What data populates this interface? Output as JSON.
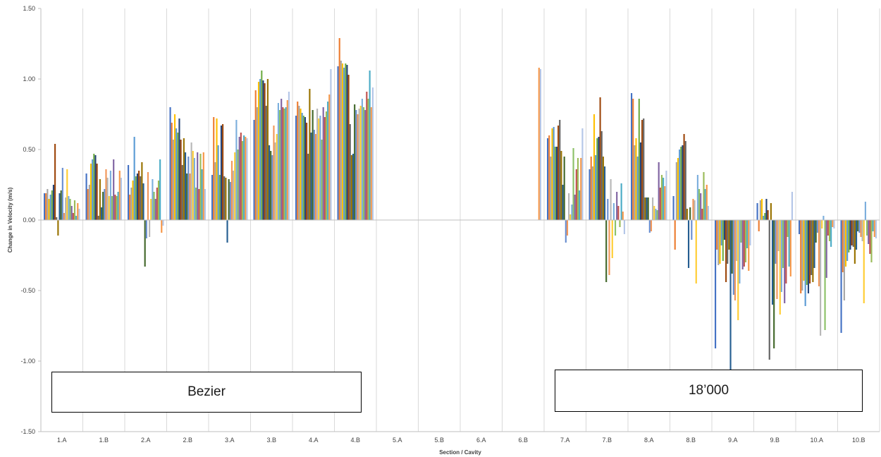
{
  "chart_data": {
    "type": "bar",
    "title": "",
    "xlabel": "Section / Cavity",
    "ylabel": "Change in Velocity (m/s)",
    "ylim": [
      -1.5,
      1.5
    ],
    "yticks": [
      "-1.50",
      "-1.00",
      "-0.50",
      "0.00",
      "0.50",
      "1.00",
      "1.50"
    ],
    "grid": "vertical gridlines between categories",
    "categories": [
      "1.A",
      "1.B",
      "2.A",
      "2.B",
      "3.A",
      "3.B",
      "4.A",
      "4.B",
      "5.A",
      "5.B",
      "6.A",
      "6.B",
      "7.A",
      "7.B",
      "8.A",
      "8.B",
      "9.A",
      "9.B",
      "10.A",
      "10.B"
    ],
    "bars_per_category": 24,
    "colors": [
      "#4472C4",
      "#ED7D31",
      "#A5A5A5",
      "#FFC000",
      "#5B9BD5",
      "#70AD47",
      "#264478",
      "#9E480E",
      "#636363",
      "#997300",
      "#255E91",
      "#43682B",
      "#698ED0",
      "#F1975A",
      "#B7B7B7",
      "#FFCD33",
      "#7CAFDD",
      "#8CC168",
      "#8064A2",
      "#C0504D",
      "#9BBB59",
      "#4BACC6",
      "#F79646",
      "#B4C6E7"
    ],
    "category_values": [
      [
        0.19,
        0.19,
        0.22,
        0.15,
        0.18,
        0.21,
        0.25,
        0.54,
        0.02,
        -0.11,
        0.19,
        0.21,
        0.37,
        0.05,
        0.16,
        0.36,
        0.17,
        0.15,
        0.1,
        0.05,
        0.14,
        0.03,
        0.12,
        0.08
      ],
      [
        0.33,
        0.22,
        0.25,
        0.4,
        0.43,
        0.47,
        0.46,
        0.4,
        0.03,
        0.29,
        0.09,
        0.2,
        0.22,
        0.36,
        0.3,
        0.17,
        0.35,
        0.17,
        0.43,
        0.18,
        0.17,
        0.2,
        0.35,
        0.3
      ],
      [
        0.39,
        0.18,
        0.23,
        0.28,
        0.59,
        0.31,
        0.33,
        0.35,
        0.31,
        0.41,
        0.26,
        -0.33,
        -0.13,
        0.34,
        -0.12,
        0.15,
        0.29,
        0.2,
        0.15,
        0.23,
        0.28,
        0.43,
        -0.09,
        -0.04
      ],
      [
        0.8,
        0.69,
        0.57,
        0.75,
        0.65,
        0.62,
        0.72,
        0.57,
        0.39,
        0.58,
        0.48,
        0.33,
        0.45,
        0.33,
        0.55,
        0.49,
        0.44,
        0.23,
        0.48,
        0.22,
        0.47,
        0.36,
        0.48,
        0.22
      ],
      [
        0.32,
        0.73,
        0.41,
        0.72,
        0.53,
        0.32,
        0.67,
        0.68,
        0.31,
        0.3,
        -0.16,
        0.29,
        0.27,
        0.42,
        0.35,
        0.48,
        0.71,
        0.5,
        0.59,
        0.62,
        0.56,
        0.6,
        0.59,
        0.58
      ],
      [
        0.71,
        0.92,
        0.8,
        0.98,
        1.0,
        1.06,
        0.99,
        0.97,
        0.81,
        1.0,
        0.53,
        0.49,
        0.46,
        0.67,
        0.55,
        0.61,
        0.83,
        0.78,
        0.86,
        0.8,
        0.79,
        0.8,
        0.85,
        0.91
      ],
      [
        0.74,
        0.84,
        0.81,
        0.79,
        0.76,
        0.74,
        0.73,
        0.69,
        0.47,
        0.93,
        0.62,
        0.78,
        0.64,
        0.61,
        0.79,
        0.72,
        0.74,
        0.57,
        0.8,
        0.73,
        0.77,
        0.84,
        0.89,
        1.07
      ],
      [
        1.09,
        1.29,
        1.13,
        1.11,
        1.08,
        1.11,
        1.1,
        1.03,
        0.68,
        0.46,
        0.47,
        0.82,
        0.78,
        0.75,
        0.79,
        0.81,
        0.86,
        0.8,
        0.78,
        0.91,
        0.86,
        1.06,
        0.8,
        0.94
      ],
      [
        0,
        0,
        0,
        0,
        0,
        0,
        0,
        0,
        0,
        0,
        0,
        0,
        0,
        0,
        0,
        0,
        0,
        0,
        0,
        0,
        0,
        0,
        0,
        0
      ],
      [
        0,
        0,
        0,
        0,
        0,
        0,
        0,
        0,
        0,
        0,
        0,
        0,
        0,
        0,
        0,
        0,
        0,
        0,
        0,
        0,
        0,
        0,
        0,
        0
      ],
      [
        0,
        0,
        0,
        0,
        0,
        0,
        0,
        0,
        0,
        0,
        0,
        0,
        0,
        0,
        0,
        0,
        0,
        0,
        0,
        0,
        0,
        0,
        0,
        0
      ],
      [
        0,
        0,
        0,
        0,
        0,
        0,
        0,
        0,
        0,
        0,
        0,
        0,
        0,
        0,
        0,
        0,
        0,
        0,
        0,
        0,
        0,
        0,
        1.08,
        1.07
      ],
      [
        0.58,
        0.6,
        0.45,
        0.65,
        0.66,
        0.52,
        0.52,
        0.67,
        0.71,
        0.49,
        0.25,
        0.45,
        -0.16,
        -0.11,
        0.19,
        0.04,
        0.11,
        0.51,
        0.18,
        0.36,
        0.44,
        0.21,
        0.44,
        0.65
      ],
      [
        0.36,
        0.45,
        0.38,
        0.75,
        0.46,
        0.58,
        0.59,
        0.87,
        0.63,
        0.45,
        0.38,
        -0.44,
        0.15,
        -0.39,
        0.29,
        -0.27,
        0.12,
        -0.11,
        0.2,
        0.1,
        -0.05,
        0.26,
        0.06,
        -0.1
      ],
      [
        0.9,
        0.86,
        0.53,
        0.58,
        0.45,
        0.86,
        0.55,
        0.71,
        0.72,
        0.16,
        0.16,
        0.16,
        -0.09,
        -0.08,
        0.16,
        0.1,
        0.08,
        0.07,
        0.41,
        0.23,
        0.32,
        0.3,
        0.24,
        0.35
      ],
      [
        0.17,
        -0.21,
        0.41,
        0.44,
        0.5,
        0.52,
        0.53,
        0.61,
        0.56,
        0.08,
        -0.34,
        0.09,
        -0.14,
        0.15,
        0.14,
        -0.45,
        0.32,
        0.22,
        0.19,
        0.08,
        0.34,
        0.22,
        0.25,
        0.1
      ],
      [
        -0.91,
        -0.21,
        -0.32,
        -0.31,
        -0.18,
        -0.29,
        -0.14,
        -0.44,
        -0.31,
        -0.21,
        -1.09,
        -0.38,
        -0.53,
        -0.57,
        -0.29,
        -0.71,
        -0.45,
        -0.16,
        -0.35,
        -0.33,
        -0.3,
        -0.2,
        -0.36,
        -0.18
      ],
      [
        0.12,
        -0.08,
        0.14,
        0.15,
        0.03,
        0.05,
        0.15,
        0.07,
        -0.99,
        0.12,
        -0.6,
        -0.91,
        -0.31,
        -0.56,
        -0.22,
        -0.67,
        -0.51,
        -0.34,
        -0.59,
        -0.45,
        -0.12,
        -0.33,
        -0.4,
        0.2
      ],
      [
        -0.1,
        -0.52,
        -0.5,
        -0.43,
        -0.61,
        -0.46,
        -0.52,
        -0.45,
        -0.39,
        -0.44,
        -0.34,
        -0.16,
        -0.09,
        -0.47,
        -0.82,
        -0.06,
        0.03,
        -0.78,
        -0.41,
        -0.11,
        -0.15,
        -0.19,
        -0.05,
        -0.06
      ],
      [
        -0.8,
        -0.37,
        -0.57,
        -0.33,
        -0.29,
        -0.23,
        -0.21,
        -0.18,
        -0.19,
        -0.31,
        -0.21,
        -0.08,
        -0.09,
        -0.12,
        -0.15,
        -0.59,
        0.13,
        -0.11,
        -0.17,
        -0.24,
        -0.3,
        -0.08,
        -0.12,
        -0.13
      ]
    ]
  },
  "annotations": {
    "left_box": "Bezier",
    "right_box": "18’000"
  }
}
